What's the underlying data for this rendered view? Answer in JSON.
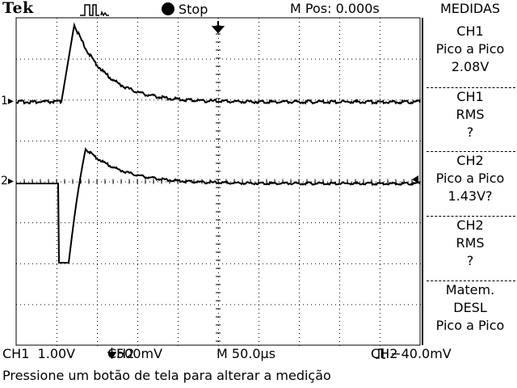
{
  "header": {
    "brand": "Tek",
    "trigger_icon": "trigger-pulse-icon",
    "run_state": "Stop",
    "mpos": "M Pos: 0.000s",
    "panel_title": "MEDIDAS"
  },
  "measurements": [
    {
      "channel": "CH1",
      "type": "Pico a Pico",
      "value": "2.08V"
    },
    {
      "channel": "CH1",
      "type": "RMS",
      "value": "?"
    },
    {
      "channel": "CH2",
      "type": "Pico a Pico",
      "value": "1.43V?"
    },
    {
      "channel": "CH2",
      "type": "RMS",
      "value": "?"
    },
    {
      "channel": "Matem.",
      "type": "DESL",
      "value": "Pico a Pico"
    }
  ],
  "channel_markers": {
    "ch1": "1",
    "ch2": "2"
  },
  "footer": {
    "ch1_scale": "CH1  1.00V",
    "ch2_scale": "CH2",
    "ch2_coupling_icon": "coupling-arrow-icon",
    "ch2_volts": "500mV",
    "timebase": "M 50.0µs",
    "trigger_src": "CH2",
    "trigger_edge_icon": "trigger-edge-icon",
    "trigger_level": "−40.0mV",
    "hint": "Pressione um botão de tela para alterar a medição"
  },
  "colors": {
    "background": "#ffffff",
    "trace": "#000000",
    "grid": "#000000"
  }
}
